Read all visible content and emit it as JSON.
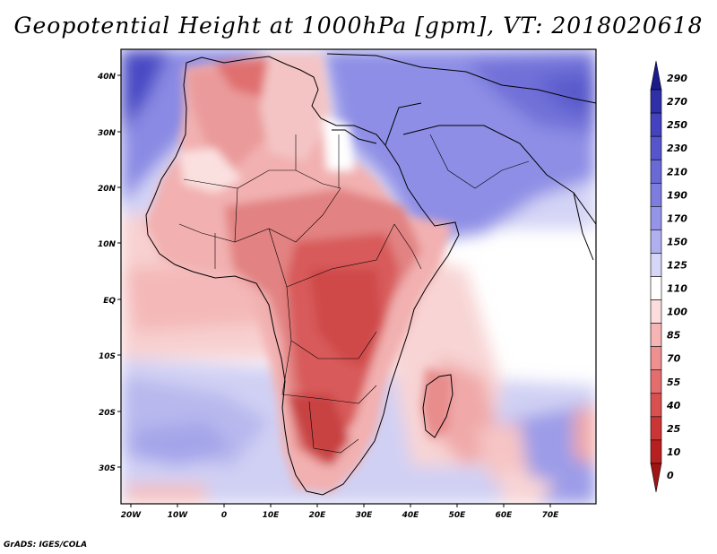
{
  "title": "Geopotential Height at 1000hPa [gpm], VT: 2018020618",
  "credit": "GrADS: IGES/COLA",
  "map": {
    "lat_labels": [
      "40N",
      "30N",
      "20N",
      "10N",
      "EQ",
      "10S",
      "20S",
      "30S"
    ],
    "lon_labels": [
      "20W",
      "10W",
      "0",
      "10E",
      "20E",
      "30E",
      "40E",
      "50E",
      "60E",
      "70E"
    ]
  },
  "colorbar": {
    "levels": [
      "290",
      "270",
      "250",
      "230",
      "210",
      "190",
      "170",
      "150",
      "125",
      "110",
      "100",
      "85",
      "70",
      "55",
      "40",
      "25",
      "10",
      "0"
    ],
    "colors": [
      "#1b1b8c",
      "#2f2fa8",
      "#4343bf",
      "#5656cc",
      "#6a6ad6",
      "#7d7de0",
      "#9494e8",
      "#b0b0f0",
      "#d6d6f8",
      "#ffffff",
      "#fcdcdc",
      "#f6b4b4",
      "#ee9090",
      "#e46e6e",
      "#d85050",
      "#cc3535",
      "#b82020",
      "#a01414"
    ]
  }
}
